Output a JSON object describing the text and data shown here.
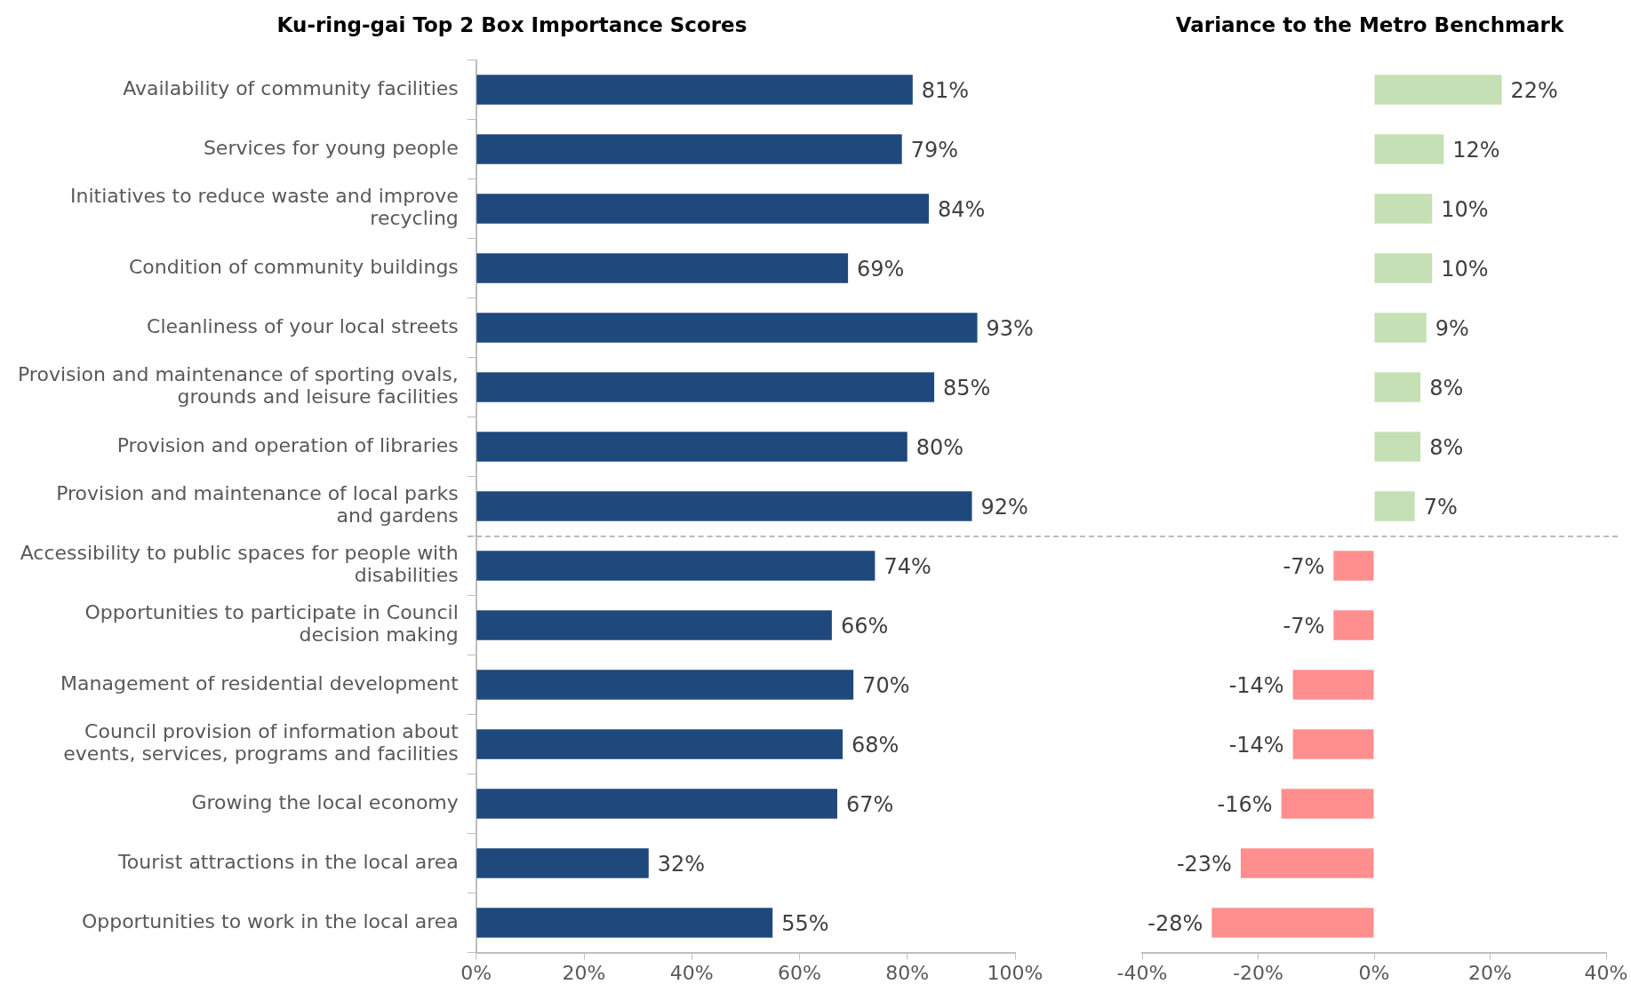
{
  "chart_data": [
    {
      "type": "bar",
      "orientation": "horizontal",
      "title": "Ku-ring-gai Top 2 Box Importance Scores",
      "categories": [
        "Availability of community facilities",
        "Services for young people",
        "Initiatives to reduce waste and improve recycling",
        "Condition of community buildings",
        "Cleanliness of your local streets",
        "Provision and maintenance of sporting ovals, grounds and leisure facilities",
        "Provision and operation of libraries",
        "Provision and maintenance of local parks and gardens",
        "Accessibility to public spaces for people with disabilities",
        "Opportunities to participate in Council decision making",
        "Management of residential development",
        "Council provision of information about events, services, programs and facilities",
        "Growing the local economy",
        "Tourist attractions in the local area",
        "Opportunities to work in the local area"
      ],
      "values": [
        81,
        79,
        84,
        69,
        93,
        85,
        80,
        92,
        74,
        66,
        70,
        68,
        67,
        32,
        55
      ],
      "value_labels": [
        "81%",
        "79%",
        "84%",
        "69%",
        "93%",
        "85%",
        "80%",
        "92%",
        "74%",
        "66%",
        "70%",
        "68%",
        "67%",
        "32%",
        "55%"
      ],
      "color": "#1f497d",
      "xlim": [
        0,
        100
      ],
      "xticks": [
        {
          "value": 0,
          "label": "0%"
        },
        {
          "value": 20,
          "label": "20%"
        },
        {
          "value": 40,
          "label": "40%"
        },
        {
          "value": 60,
          "label": "60%"
        },
        {
          "value": 80,
          "label": "80%"
        },
        {
          "value": 100,
          "label": "100%"
        }
      ],
      "legend": false,
      "grid": false
    },
    {
      "type": "bar",
      "orientation": "horizontal",
      "title": "Variance to the Metro Benchmark",
      "categories": [
        null,
        null,
        null,
        null,
        null,
        null,
        null,
        null,
        null,
        null,
        null,
        null,
        null,
        null,
        null
      ],
      "values": [
        22,
        12,
        10,
        10,
        9,
        8,
        8,
        7,
        -7,
        -7,
        -14,
        -14,
        -16,
        -23,
        -28
      ],
      "value_labels": [
        "22%",
        "12%",
        "10%",
        "10%",
        "9%",
        "8%",
        "8%",
        "7%",
        "-7%",
        "-7%",
        "-14%",
        "-14%",
        "-16%",
        "-23%",
        "-28%"
      ],
      "colors": [
        "#c5e0b4",
        "#c5e0b4",
        "#c5e0b4",
        "#c5e0b4",
        "#c5e0b4",
        "#c5e0b4",
        "#c5e0b4",
        "#c5e0b4",
        "#ff8f8f",
        "#ff8f8f",
        "#ff8f8f",
        "#ff8f8f",
        "#ff8f8f",
        "#ff8f8f",
        "#ff8f8f"
      ],
      "xlim": [
        -40,
        40
      ],
      "xticks": [
        {
          "value": -40,
          "label": "-40%"
        },
        {
          "value": -20,
          "label": "-20%"
        },
        {
          "value": 0,
          "label": "0%"
        },
        {
          "value": 20,
          "label": "20%"
        },
        {
          "value": 40,
          "label": "40%"
        }
      ],
      "tick_labels": "x",
      "legend": false,
      "grid": false
    }
  ]
}
